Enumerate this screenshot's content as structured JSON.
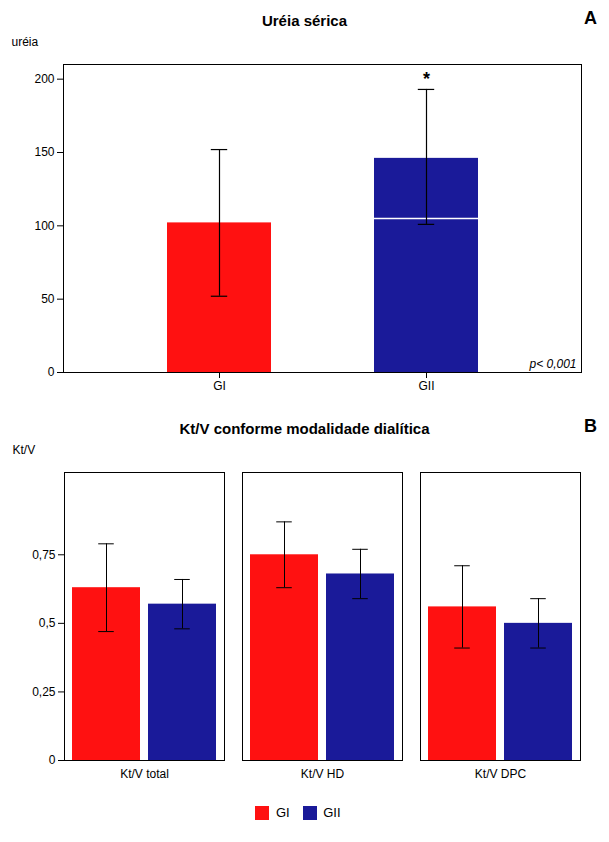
{
  "chart_data": [
    {
      "type": "bar",
      "title": "Uréia sérica",
      "panel": "A",
      "ylabel": "uréia",
      "categories": [
        "GI",
        "GII"
      ],
      "values": [
        102,
        146
      ],
      "error_low": [
        50,
        45
      ],
      "error_high": [
        50,
        47
      ],
      "colors": [
        "#FF1111",
        "#1A1A99"
      ],
      "medians": [
        null,
        105
      ],
      "annotations": [
        {
          "text": "*",
          "category": "GII"
        },
        {
          "text": "p< 0,001"
        }
      ],
      "ylim": [
        0,
        210
      ],
      "yticks": [
        0,
        50,
        100,
        150,
        200
      ],
      "grid": false
    },
    {
      "type": "bar",
      "title": "Kt/V conforme modalidade dialítica",
      "panel": "B",
      "ylabel": "Kt/V",
      "categories": [
        "Kt/V total",
        "Kt/V HD",
        "Kt/V DPC"
      ],
      "series": [
        {
          "name": "GI",
          "color": "#FF1111",
          "values": [
            0.63,
            0.75,
            0.56
          ],
          "error_low": [
            0.16,
            0.12,
            0.15
          ],
          "error_high": [
            0.16,
            0.12,
            0.15
          ]
        },
        {
          "name": "GII",
          "color": "#1A1A99",
          "values": [
            0.57,
            0.68,
            0.5
          ],
          "error_low": [
            0.09,
            0.09,
            0.09
          ],
          "error_high": [
            0.09,
            0.09,
            0.09
          ]
        }
      ],
      "ylim": [
        0,
        1.05
      ],
      "yticks": [
        0,
        {
          "value": 0.25,
          "label": "0,25"
        },
        {
          "value": 0.5,
          "label": "0,5"
        },
        {
          "value": 0.75,
          "label": "0,75"
        }
      ],
      "legend": "bottom",
      "grid": false
    }
  ]
}
